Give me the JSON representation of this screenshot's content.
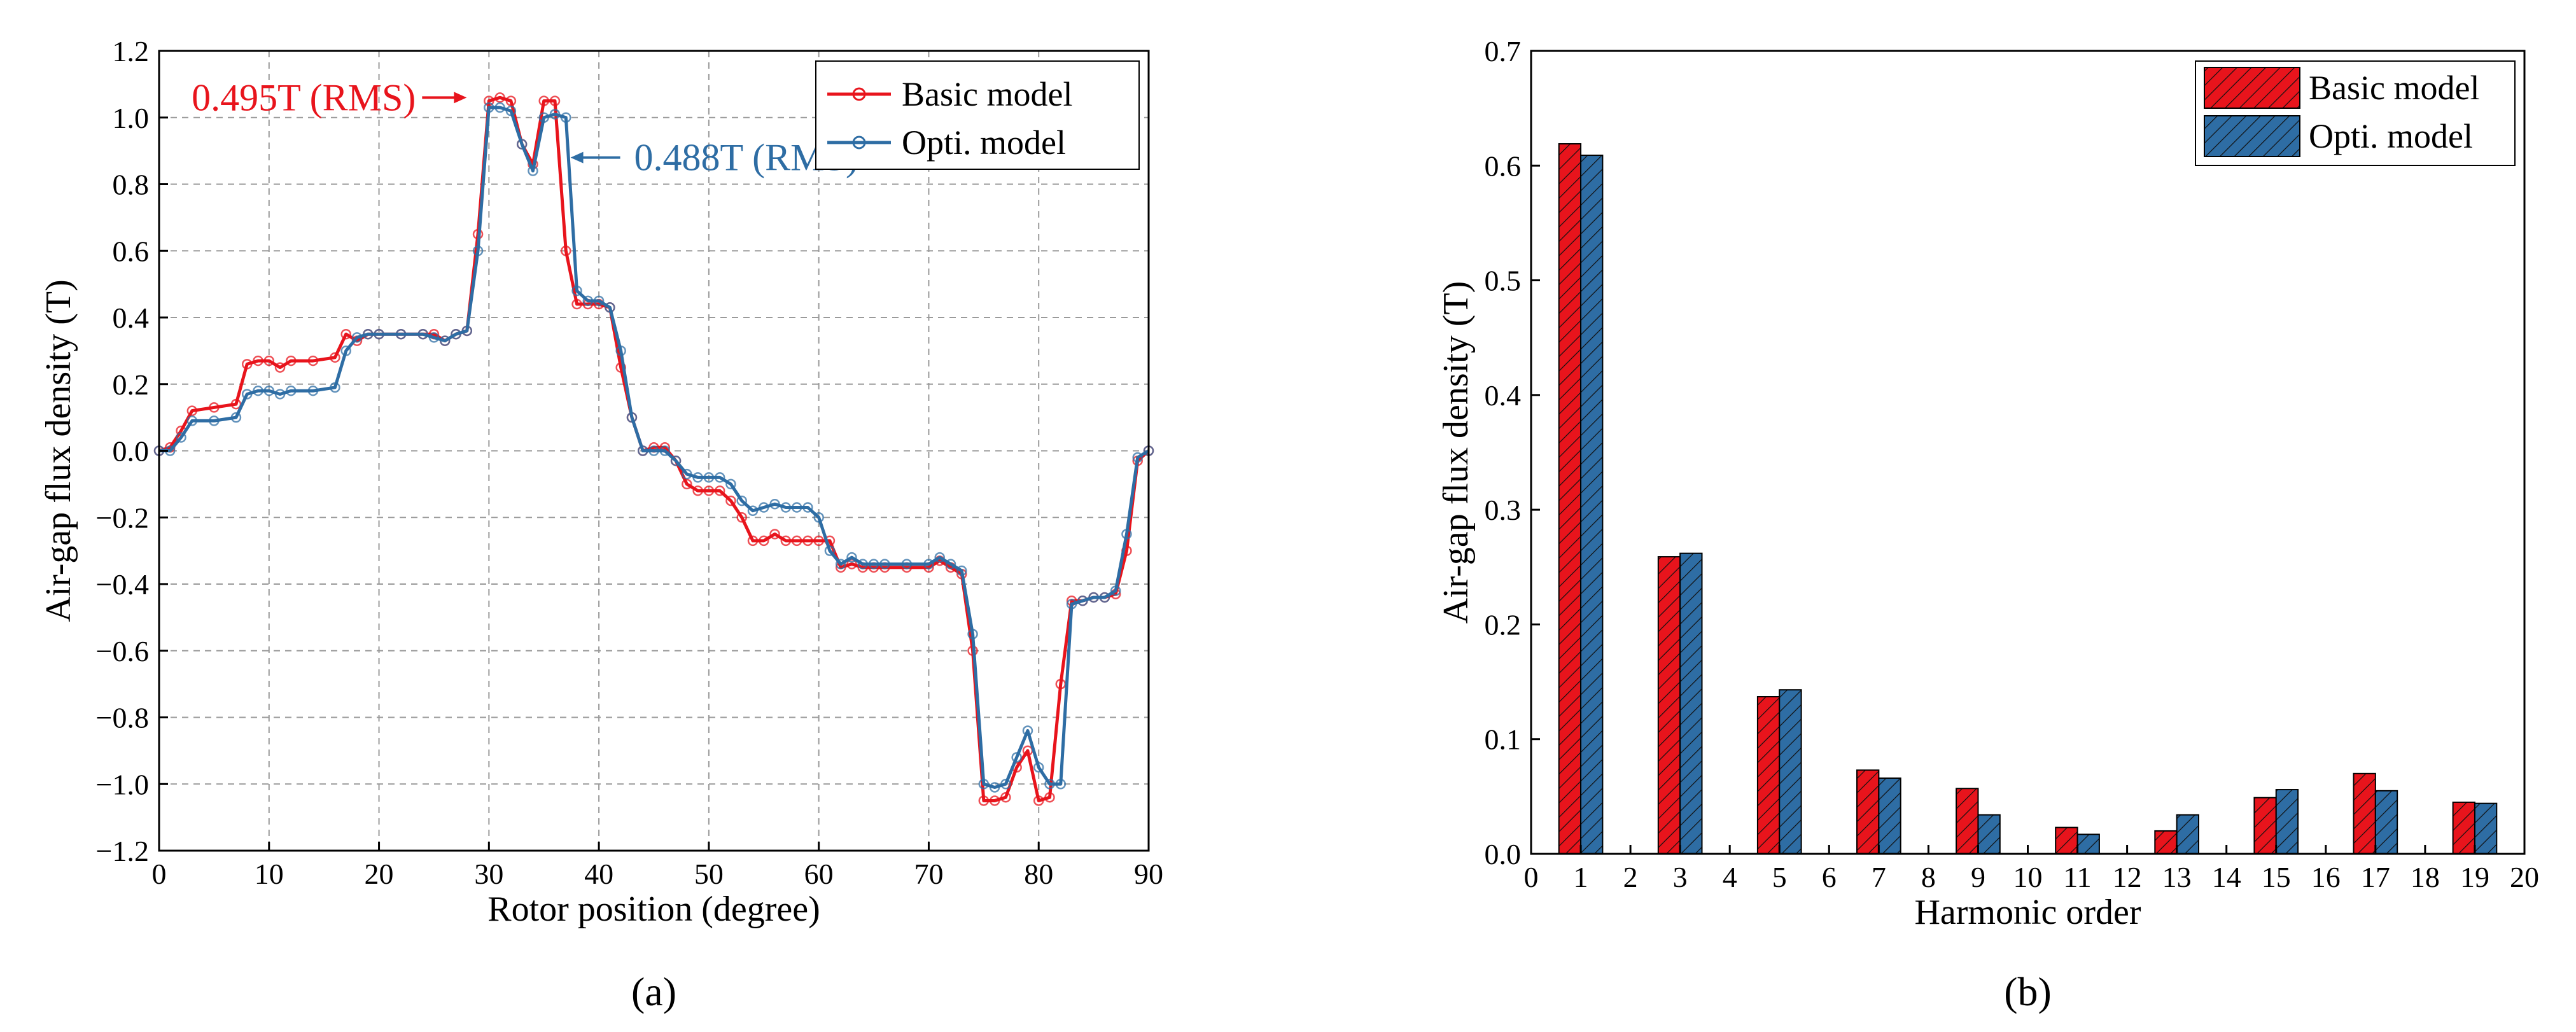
{
  "chart_data": [
    {
      "panel_label": "(a)",
      "type": "line",
      "title": "",
      "xlabel": "Rotor position (degree)",
      "ylabel": "Air-gap flux density (T)",
      "xlim": [
        0,
        90
      ],
      "ylim": [
        -1.2,
        1.2
      ],
      "xticks": [
        0,
        10,
        20,
        30,
        40,
        50,
        60,
        70,
        80,
        90
      ],
      "yticks": [
        -1.2,
        -1.0,
        -0.8,
        -0.6,
        -0.4,
        -0.2,
        0.0,
        0.2,
        0.4,
        0.6,
        0.8,
        1.0,
        1.2
      ],
      "ytick_labels": [
        "−1.2",
        "−1.0",
        "−0.8",
        "−0.6",
        "−0.4",
        "−0.2",
        "0.0",
        "0.2",
        "0.4",
        "0.6",
        "0.8",
        "1.0",
        "1.2"
      ],
      "grid": true,
      "legend_position": "top-right",
      "series": [
        {
          "name": "Basic model",
          "color": "#e8141c",
          "x": [
            0,
            1,
            2,
            3,
            5,
            7,
            8,
            9,
            10,
            11,
            12,
            14,
            16,
            17,
            18,
            19,
            20,
            22,
            24,
            25,
            26,
            27,
            28,
            29,
            30,
            31,
            32,
            33,
            34,
            35,
            36,
            37,
            38,
            39,
            40,
            41,
            42,
            43,
            44,
            45,
            46,
            47,
            48,
            49,
            50,
            51,
            52,
            53,
            54,
            55,
            56,
            57,
            58,
            59,
            60,
            61,
            62,
            63,
            64,
            65,
            66,
            68,
            70,
            71,
            72,
            73,
            74,
            75,
            76,
            77,
            78,
            79,
            80,
            81,
            82,
            83,
            84,
            85,
            86,
            87,
            88,
            89,
            90
          ],
          "y": [
            0,
            0.01,
            0.06,
            0.12,
            0.13,
            0.14,
            0.26,
            0.27,
            0.27,
            0.25,
            0.27,
            0.27,
            0.28,
            0.35,
            0.33,
            0.35,
            0.35,
            0.35,
            0.35,
            0.35,
            0.33,
            0.35,
            0.36,
            0.65,
            1.05,
            1.06,
            1.05,
            0.92,
            0.86,
            1.05,
            1.05,
            0.6,
            0.44,
            0.44,
            0.44,
            0.43,
            0.25,
            0.1,
            0.0,
            0.01,
            0.01,
            -0.03,
            -0.1,
            -0.12,
            -0.12,
            -0.12,
            -0.15,
            -0.2,
            -0.27,
            -0.27,
            -0.25,
            -0.27,
            -0.27,
            -0.27,
            -0.27,
            -0.27,
            -0.35,
            -0.34,
            -0.35,
            -0.35,
            -0.35,
            -0.35,
            -0.35,
            -0.33,
            -0.35,
            -0.37,
            -0.6,
            -1.05,
            -1.05,
            -1.04,
            -0.95,
            -0.9,
            -1.05,
            -1.04,
            -0.7,
            -0.45,
            -0.45,
            -0.44,
            -0.44,
            -0.43,
            -0.3,
            -0.03,
            0.0
          ]
        },
        {
          "name": "Opti. model",
          "color": "#2e6da4",
          "x": [
            0,
            1,
            2,
            3,
            5,
            7,
            8,
            9,
            10,
            11,
            12,
            14,
            16,
            17,
            18,
            19,
            20,
            22,
            24,
            25,
            26,
            27,
            28,
            29,
            30,
            31,
            32,
            33,
            34,
            35,
            36,
            37,
            38,
            39,
            40,
            41,
            42,
            43,
            44,
            45,
            46,
            47,
            48,
            49,
            50,
            51,
            52,
            53,
            54,
            55,
            56,
            57,
            58,
            59,
            60,
            61,
            62,
            63,
            64,
            65,
            66,
            68,
            70,
            71,
            72,
            73,
            74,
            75,
            76,
            77,
            78,
            79,
            80,
            81,
            82,
            83,
            84,
            85,
            86,
            87,
            88,
            89,
            90
          ],
          "y": [
            0,
            0.0,
            0.04,
            0.09,
            0.09,
            0.1,
            0.17,
            0.18,
            0.18,
            0.17,
            0.18,
            0.18,
            0.19,
            0.3,
            0.34,
            0.35,
            0.35,
            0.35,
            0.35,
            0.34,
            0.33,
            0.35,
            0.36,
            0.6,
            1.03,
            1.03,
            1.02,
            0.92,
            0.84,
            1.0,
            1.01,
            1.0,
            0.48,
            0.45,
            0.45,
            0.43,
            0.3,
            0.1,
            0.0,
            0.0,
            0.0,
            -0.03,
            -0.07,
            -0.08,
            -0.08,
            -0.08,
            -0.1,
            -0.15,
            -0.18,
            -0.17,
            -0.16,
            -0.17,
            -0.17,
            -0.17,
            -0.2,
            -0.3,
            -0.34,
            -0.32,
            -0.34,
            -0.34,
            -0.34,
            -0.34,
            -0.34,
            -0.32,
            -0.34,
            -0.36,
            -0.55,
            -1.0,
            -1.01,
            -1.0,
            -0.92,
            -0.84,
            -0.95,
            -1.0,
            -1.0,
            -0.46,
            -0.45,
            -0.44,
            -0.44,
            -0.42,
            -0.25,
            -0.02,
            0.0
          ]
        }
      ],
      "annotations": [
        {
          "text": "0.495T (RMS)",
          "series": "Basic model",
          "x": 30,
          "y": 1.06
        },
        {
          "text": "0.488T (RMS)",
          "series": "Opti. model",
          "x": 38,
          "y": 0.88
        }
      ]
    },
    {
      "panel_label": "(b)",
      "type": "bar",
      "title": "",
      "xlabel": "Harmonic order",
      "ylabel": "Air-gap flux density (T)",
      "xlim": [
        0,
        20
      ],
      "ylim": [
        0,
        0.7
      ],
      "xticks": [
        0,
        1,
        2,
        3,
        4,
        5,
        6,
        7,
        8,
        9,
        10,
        11,
        12,
        13,
        14,
        15,
        16,
        17,
        18,
        19,
        20
      ],
      "yticks": [
        0.0,
        0.1,
        0.2,
        0.3,
        0.4,
        0.5,
        0.6,
        0.7
      ],
      "ytick_labels": [
        "0.0",
        "0.1",
        "0.2",
        "0.3",
        "0.4",
        "0.5",
        "0.6",
        "0.7"
      ],
      "grid": false,
      "legend_position": "top-right",
      "categories": [
        1,
        3,
        5,
        7,
        9,
        11,
        13,
        15,
        17,
        19
      ],
      "series": [
        {
          "name": "Basic model",
          "color": "#e8141c",
          "values": [
            0.619,
            0.259,
            0.137,
            0.073,
            0.057,
            0.023,
            0.02,
            0.049,
            0.07,
            0.045
          ]
        },
        {
          "name": "Opti. model",
          "color": "#2e6da4",
          "values": [
            0.609,
            0.262,
            0.143,
            0.066,
            0.034,
            0.017,
            0.034,
            0.056,
            0.055,
            0.044
          ]
        }
      ]
    }
  ]
}
